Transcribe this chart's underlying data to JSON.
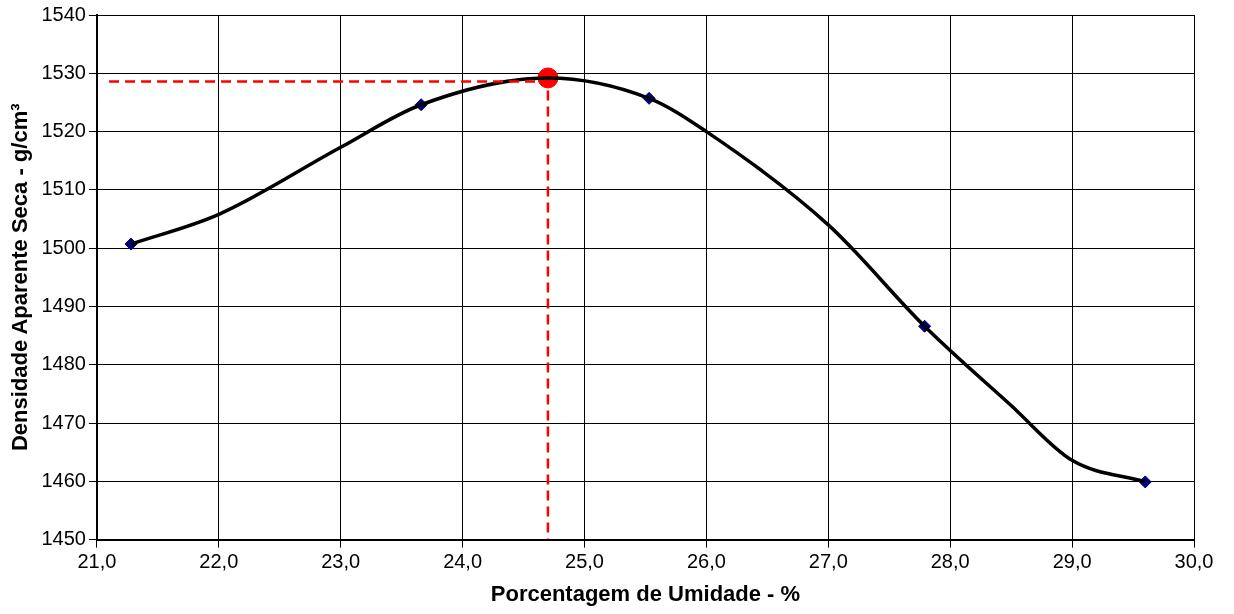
{
  "chart_data": {
    "type": "line",
    "xlabel": "Porcentagem de Umidade - %",
    "ylabel": "Densidade Aparente Seca - g/cm³",
    "xlim": [
      21,
      30
    ],
    "xticks": [
      {
        "value": 21,
        "label": "21,0"
      },
      {
        "value": 22,
        "label": "22,0"
      },
      {
        "value": 23,
        "label": "23,0"
      },
      {
        "value": 24,
        "label": "24,0"
      },
      {
        "value": 25,
        "label": "25,0"
      },
      {
        "value": 26,
        "label": "26,0"
      },
      {
        "value": 27,
        "label": "27,0"
      },
      {
        "value": 28,
        "label": "28,0"
      },
      {
        "value": 29,
        "label": "29,0"
      },
      {
        "value": 30,
        "label": "30,0"
      }
    ],
    "ylim": [
      1450,
      1540
    ],
    "yticks": [
      1450,
      1460,
      1470,
      1480,
      1490,
      1500,
      1510,
      1520,
      1530,
      1540
    ],
    "grid": true,
    "legend": false,
    "series": [
      {
        "type": "line",
        "color": "#ff0000",
        "line_style": "dashed",
        "marker": "none",
        "x": [
          21.1,
          24.7,
          24.7
        ],
        "values": [
          1528.6,
          1528.6,
          1450
        ]
      },
      {
        "color": "#000000",
        "line_style": "solid",
        "marker": "none",
        "x": [
          21.28,
          22.0,
          23.0,
          23.66,
          24.7,
          25.53,
          26.0,
          27.0,
          27.79,
          28.5,
          29.0,
          29.6
        ],
        "values": [
          1500.7,
          1505.8,
          1517.3,
          1524.6,
          1529.2,
          1525.7,
          1520,
          1504,
          1486.6,
          1473,
          1463.6,
          1459.9
        ]
      },
      {
        "type": "scatter",
        "color": "#000080",
        "marker": "diamond",
        "x": [
          21.28,
          23.66,
          25.53,
          27.79,
          29.6
        ],
        "values": [
          1500.7,
          1524.6,
          1525.7,
          1486.6,
          1459.9
        ]
      },
      {
        "type": "scatter",
        "color": "#ff0000",
        "marker": "circle",
        "x": [
          24.7
        ],
        "values": [
          1529.2
        ]
      }
    ]
  }
}
